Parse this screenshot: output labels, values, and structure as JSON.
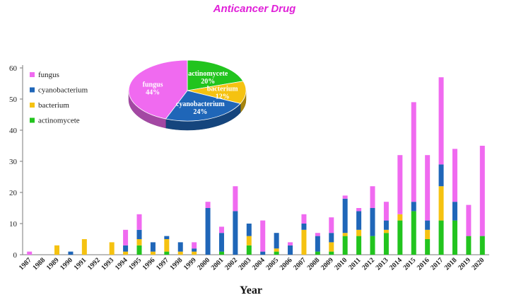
{
  "chart_data": {
    "type": "bar",
    "stacked": true,
    "title": "Anticancer Drug",
    "xlabel": "Year",
    "ylabel": "",
    "ylim": [
      0,
      60
    ],
    "yticks": [
      0,
      10,
      20,
      30,
      40,
      50,
      60
    ],
    "grid": false,
    "categories": [
      "1987",
      "1988",
      "1989",
      "1990",
      "1991",
      "1992",
      "1993",
      "1994",
      "1995",
      "1996",
      "1997",
      "1998",
      "1999",
      "2000",
      "2001",
      "2002",
      "2003",
      "2004",
      "2005",
      "2006",
      "2007",
      "2008",
      "2009",
      "2010",
      "2011",
      "2012",
      "2013",
      "2014",
      "2015",
      "2016",
      "2017",
      "2018",
      "2019",
      "2020"
    ],
    "series": [
      {
        "name": "actinomycete",
        "color": "#22c41e",
        "values": [
          0,
          0,
          0,
          0,
          0,
          0,
          0,
          0,
          3,
          0,
          1,
          0,
          0,
          0,
          1,
          0,
          3,
          0,
          1,
          0,
          0,
          1,
          1,
          6,
          6,
          6,
          7,
          11,
          14,
          5,
          11,
          11,
          6,
          6
        ]
      },
      {
        "name": "bacterium",
        "color": "#f5c211",
        "values": [
          0,
          0,
          3,
          0,
          5,
          0,
          4,
          1,
          2,
          1,
          4,
          1,
          1,
          0,
          0,
          0,
          3,
          0,
          1,
          0,
          8,
          0,
          3,
          1,
          2,
          0,
          1,
          2,
          0,
          3,
          11,
          0,
          0,
          0
        ]
      },
      {
        "name": "cyanobacterium",
        "color": "#1f66b8",
        "values": [
          0,
          0,
          0,
          1,
          0,
          0,
          0,
          2,
          3,
          3,
          1,
          3,
          1,
          15,
          6,
          14,
          4,
          1,
          5,
          3,
          2,
          5,
          3,
          11,
          6,
          9,
          3,
          0,
          3,
          3,
          7,
          6,
          0,
          0
        ]
      },
      {
        "name": "fungus",
        "color": "#f06af0",
        "values": [
          1,
          0,
          0,
          0,
          0,
          0,
          0,
          5,
          5,
          0,
          0,
          0,
          2,
          2,
          2,
          8,
          0,
          10,
          0,
          1,
          3,
          1,
          5,
          1,
          1,
          7,
          6,
          19,
          32,
          21,
          28,
          17,
          10,
          29
        ]
      }
    ],
    "legend_position": "top-left",
    "legend_order": [
      "fungus",
      "cyanobacterium",
      "bacterium",
      "actinomycete"
    ],
    "inset_pie": {
      "type": "pie",
      "position": "top-center",
      "slices": [
        {
          "name": "actinomycete",
          "label": "actinomycete",
          "pct_label": "20%",
          "value": 20,
          "color": "#22c41e"
        },
        {
          "name": "bacterium",
          "label": "bacterium",
          "pct_label": "12%",
          "value": 12,
          "color": "#f5c211"
        },
        {
          "name": "cyanobacterium",
          "label": "cyanobacterium",
          "pct_label": "24%",
          "value": 24,
          "color": "#1f66b8"
        },
        {
          "name": "fungus",
          "label": "fungus",
          "pct_label": "44%",
          "value": 44,
          "color": "#f06af0"
        }
      ]
    }
  }
}
